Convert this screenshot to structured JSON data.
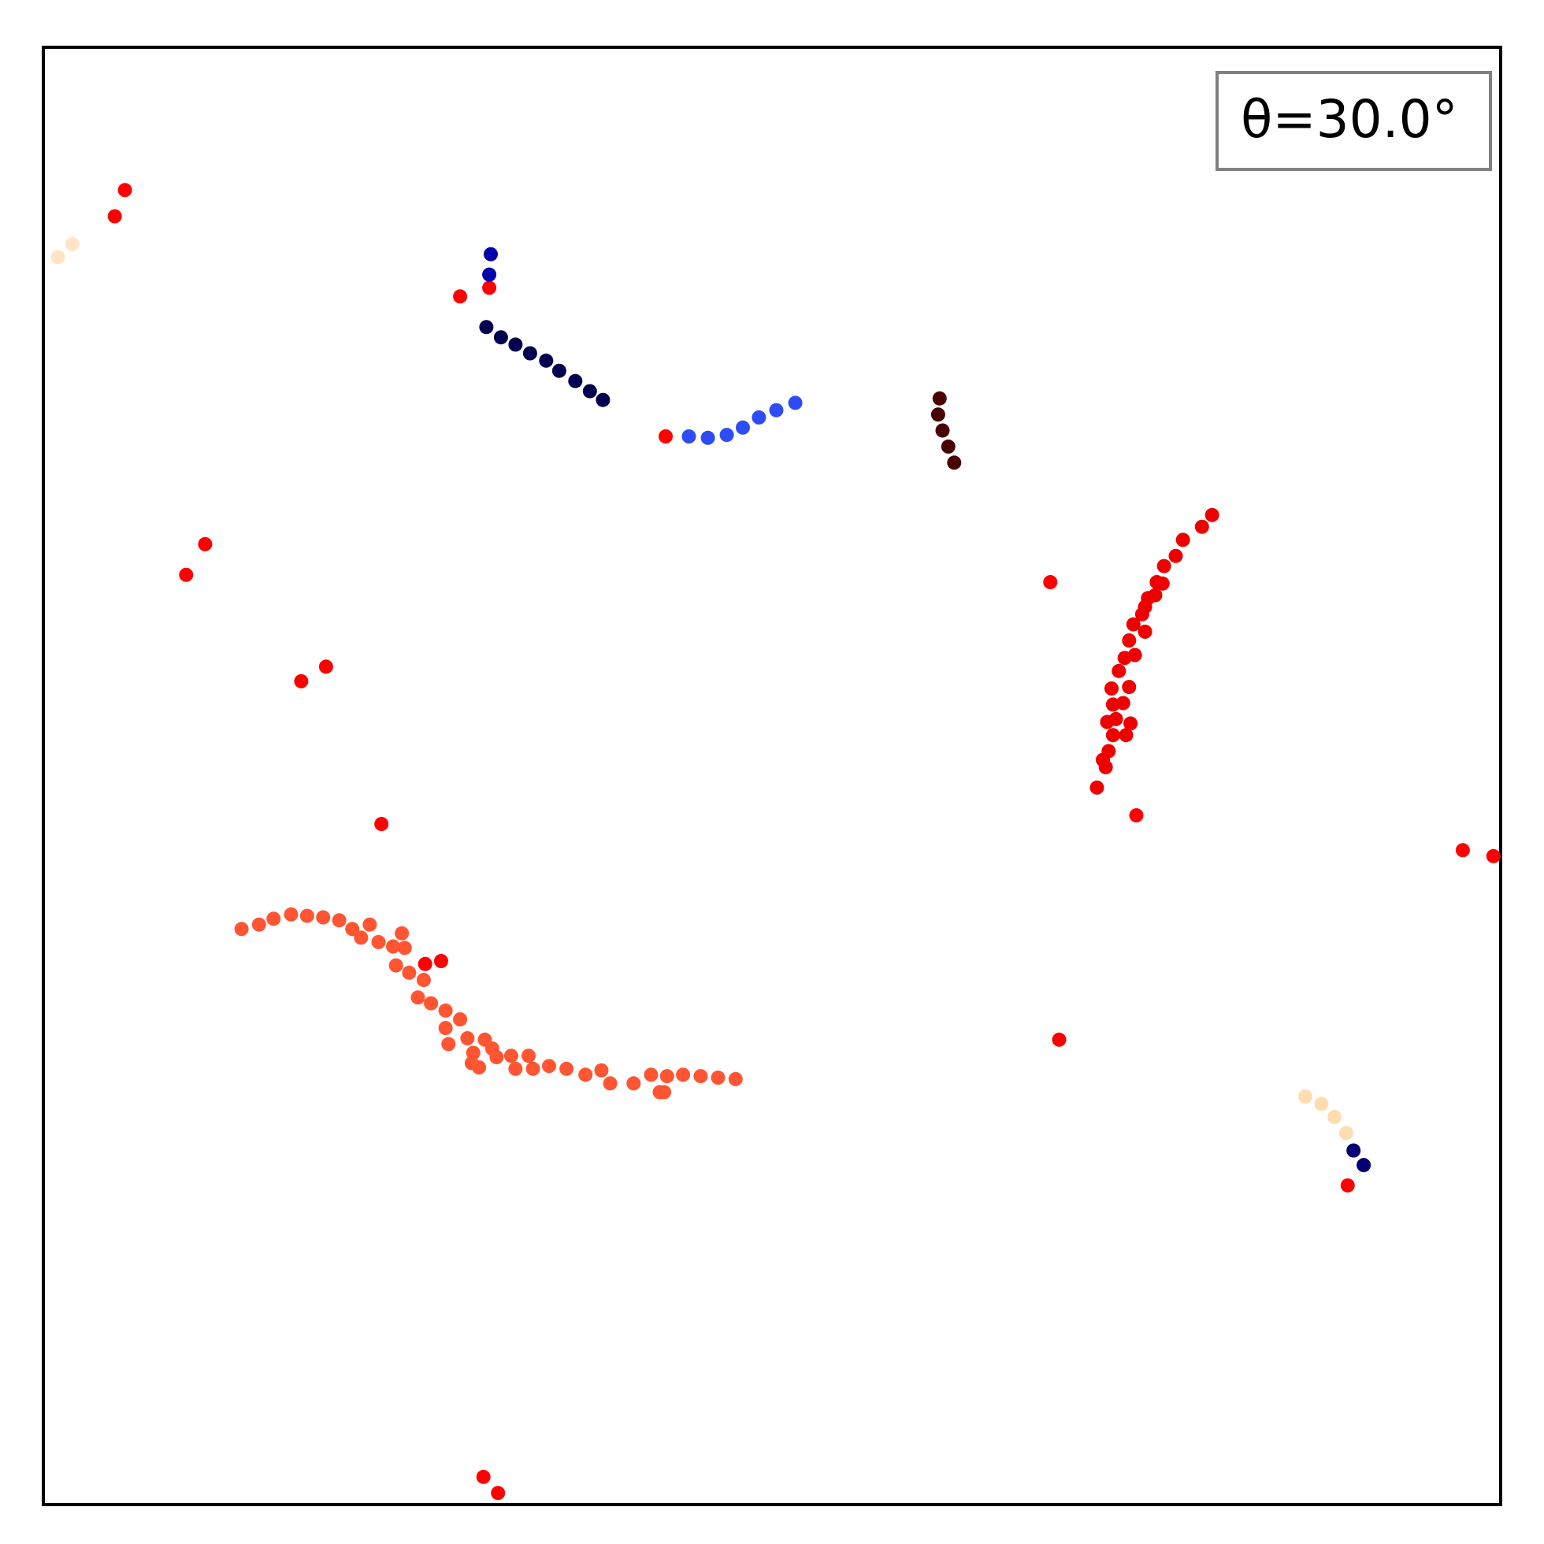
{
  "chart_data": {
    "type": "scatter",
    "title": "",
    "xlabel": "",
    "ylabel": "",
    "xlim": [
      0,
      100
    ],
    "ylim": [
      0,
      100
    ],
    "grid": false,
    "ticks": false,
    "legend": {
      "text": "θ=30.0°",
      "placement": "top-right"
    },
    "series": [
      {
        "color": "#ff5533",
        "points": [
          [
            13.6,
            39.5
          ],
          [
            14.8,
            39.8
          ],
          [
            15.8,
            40.2
          ],
          [
            17.0,
            40.5
          ],
          [
            18.1,
            40.4
          ],
          [
            19.2,
            40.3
          ],
          [
            20.3,
            40.1
          ],
          [
            21.2,
            39.5
          ],
          [
            21.8,
            38.9
          ],
          [
            22.4,
            39.8
          ],
          [
            23.0,
            38.6
          ],
          [
            24.0,
            38.3
          ],
          [
            24.6,
            39.2
          ],
          [
            24.8,
            38.2
          ],
          [
            24.2,
            37.0
          ],
          [
            25.1,
            36.5
          ],
          [
            26.1,
            36.0
          ],
          [
            25.7,
            34.8
          ],
          [
            26.6,
            34.4
          ],
          [
            27.6,
            33.9
          ],
          [
            28.6,
            33.3
          ],
          [
            27.6,
            32.7
          ],
          [
            29.1,
            32.0
          ],
          [
            27.8,
            31.6
          ],
          [
            30.3,
            31.9
          ],
          [
            29.5,
            31.0
          ],
          [
            30.8,
            31.3
          ],
          [
            29.4,
            30.3
          ],
          [
            29.9,
            30.0
          ],
          [
            31.1,
            30.7
          ],
          [
            32.1,
            30.8
          ],
          [
            32.4,
            29.9
          ],
          [
            33.3,
            30.8
          ],
          [
            33.6,
            29.9
          ],
          [
            34.7,
            30.1
          ],
          [
            35.9,
            29.9
          ],
          [
            37.2,
            29.5
          ],
          [
            38.3,
            29.8
          ],
          [
            38.9,
            28.9
          ],
          [
            40.5,
            28.9
          ],
          [
            41.7,
            29.5
          ],
          [
            42.3,
            28.3
          ],
          [
            42.8,
            29.4
          ],
          [
            43.9,
            29.5
          ],
          [
            42.6,
            28.3
          ],
          [
            45.1,
            29.4
          ],
          [
            46.3,
            29.3
          ],
          [
            47.5,
            29.2
          ]
        ]
      },
      {
        "color": "#ee0000",
        "points": [
          [
            80.2,
            67.9
          ],
          [
            79.5,
            67.1
          ],
          [
            78.2,
            66.2
          ],
          [
            77.7,
            65.1
          ],
          [
            76.9,
            64.4
          ],
          [
            76.4,
            63.3
          ],
          [
            75.8,
            62.2
          ],
          [
            75.4,
            61.1
          ],
          [
            74.8,
            60.4
          ],
          [
            74.5,
            59.3
          ],
          [
            74.2,
            58.1
          ],
          [
            73.8,
            57.2
          ],
          [
            73.3,
            56.0
          ],
          [
            73.4,
            54.9
          ],
          [
            73.6,
            53.9
          ],
          [
            73.4,
            52.8
          ],
          [
            73.1,
            51.7
          ],
          [
            72.9,
            50.6
          ],
          [
            72.3,
            49.2
          ],
          [
            75.6,
            61.6
          ],
          [
            76.3,
            62.4
          ],
          [
            76.8,
            63.2
          ],
          [
            75.6,
            59.9
          ],
          [
            74.9,
            58.3
          ],
          [
            74.5,
            56.1
          ],
          [
            74.1,
            55.0
          ],
          [
            74.3,
            52.8
          ],
          [
            74.6,
            53.6
          ],
          [
            72.7,
            51.1
          ],
          [
            73.0,
            53.7
          ]
        ]
      },
      {
        "color": "#ff0000",
        "points": [
          [
            5.6,
            90.2
          ],
          [
            4.9,
            88.4
          ],
          [
            11.1,
            65.9
          ],
          [
            9.8,
            63.8
          ],
          [
            19.4,
            57.5
          ],
          [
            17.7,
            56.5
          ],
          [
            23.2,
            46.7
          ],
          [
            27.3,
            37.3
          ],
          [
            26.2,
            37.1
          ],
          [
            28.6,
            82.9
          ],
          [
            30.6,
            83.5
          ],
          [
            42.7,
            73.3
          ],
          [
            69.1,
            63.3
          ],
          [
            75.0,
            47.3
          ],
          [
            69.7,
            31.9
          ],
          [
            97.4,
            44.9
          ],
          [
            99.5,
            44.5
          ],
          [
            89.5,
            21.9
          ],
          [
            30.2,
            1.9
          ],
          [
            31.2,
            0.8
          ]
        ]
      },
      {
        "color": "#02004f",
        "points": [
          [
            30.4,
            80.8
          ],
          [
            31.4,
            80.1
          ],
          [
            32.4,
            79.6
          ],
          [
            33.4,
            79.0
          ],
          [
            34.5,
            78.5
          ],
          [
            35.4,
            77.8
          ],
          [
            36.5,
            77.1
          ],
          [
            37.5,
            76.4
          ],
          [
            38.4,
            75.8
          ]
        ]
      },
      {
        "color": "#0000aa",
        "points": [
          [
            30.7,
            85.8
          ],
          [
            30.6,
            84.4
          ]
        ]
      },
      {
        "color": "#2e4cf4",
        "points": [
          [
            44.3,
            73.3
          ],
          [
            45.6,
            73.2
          ],
          [
            46.9,
            73.4
          ],
          [
            48.0,
            73.9
          ],
          [
            49.1,
            74.6
          ],
          [
            50.3,
            75.1
          ],
          [
            51.6,
            75.6
          ]
        ]
      },
      {
        "color": "#4a0000",
        "points": [
          [
            61.5,
            75.9
          ],
          [
            61.4,
            74.8
          ],
          [
            61.7,
            73.7
          ],
          [
            62.1,
            72.6
          ],
          [
            62.5,
            71.5
          ]
        ]
      },
      {
        "color": "#ffddb0",
        "points": [
          [
            86.6,
            28.0
          ],
          [
            87.7,
            27.5
          ],
          [
            88.6,
            26.6
          ],
          [
            89.4,
            25.5
          ]
        ]
      },
      {
        "color": "#ffe5c5",
        "points": [
          [
            1.0,
            85.6
          ],
          [
            2.0,
            86.5
          ]
        ]
      },
      {
        "color": "#060070",
        "points": [
          [
            89.9,
            24.3
          ],
          [
            90.6,
            23.3
          ]
        ]
      }
    ]
  }
}
